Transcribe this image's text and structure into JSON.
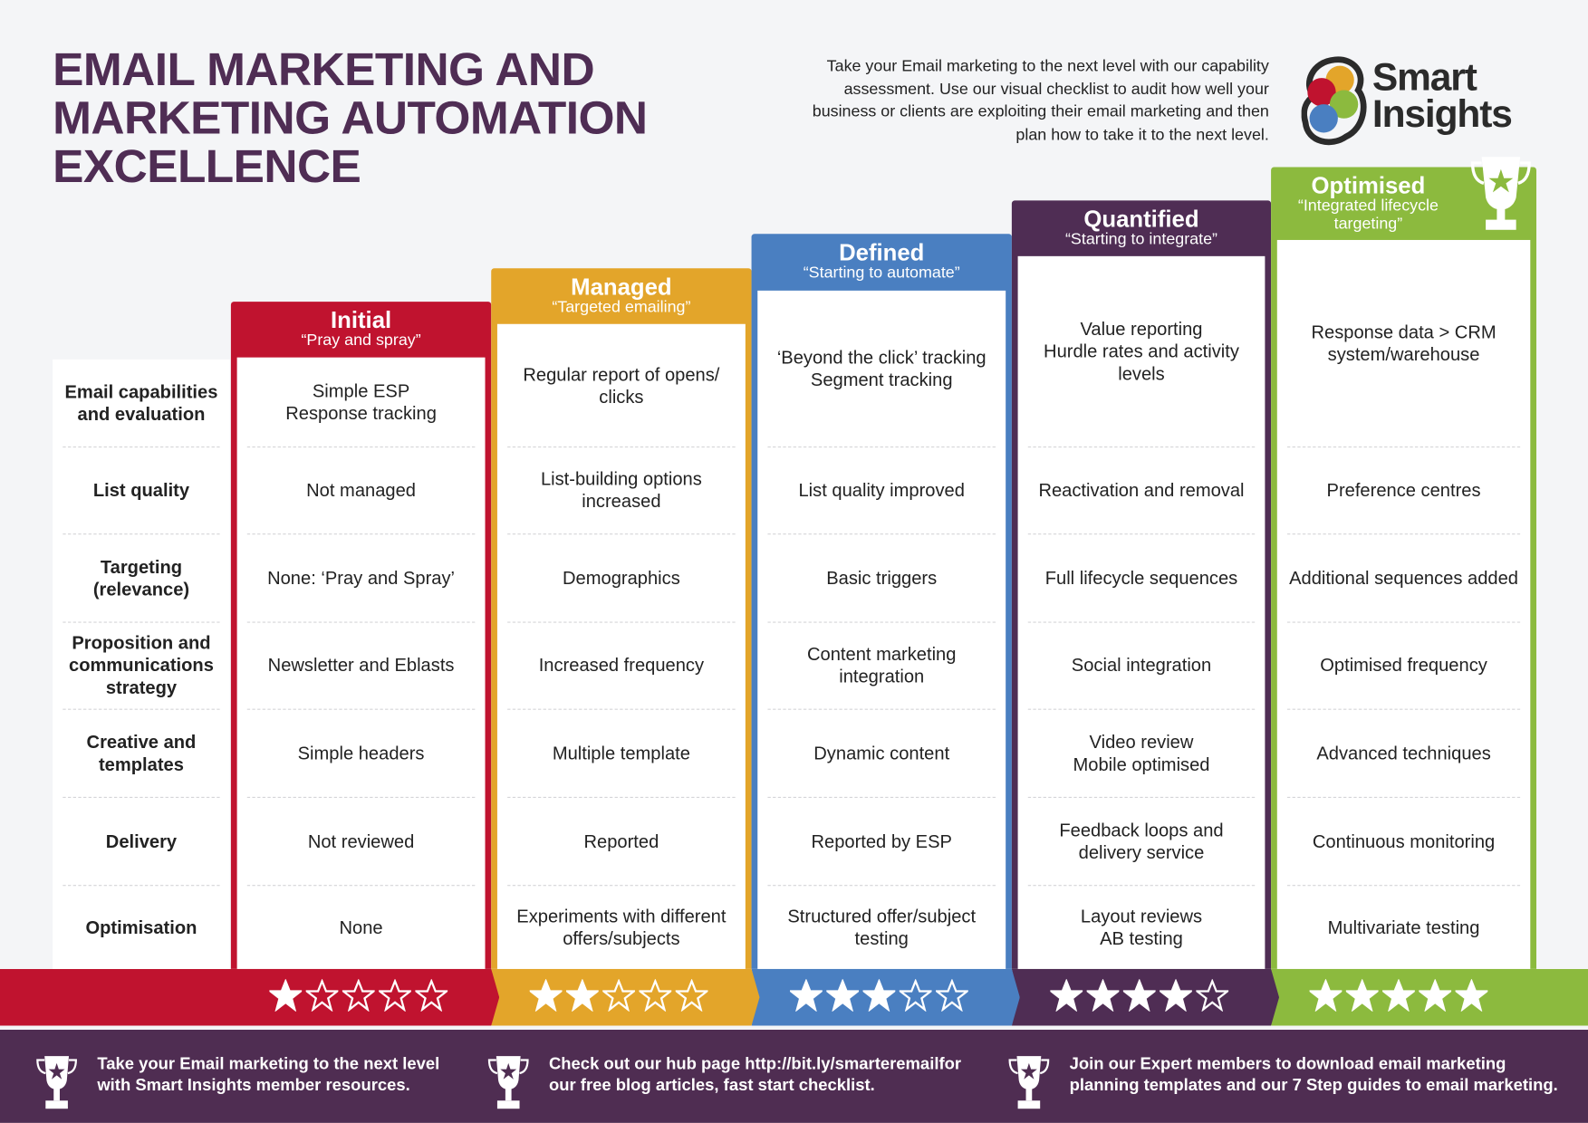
{
  "title": [
    "EMAIL MARKETING AND",
    "MARKETING AUTOMATION",
    "EXCELLENCE"
  ],
  "intro": "Take your Email marketing to the next level with our capability assessment. Use our visual checklist to audit how well your business or clients are exploiting their email marketing and then plan how to take it to the next level.",
  "logo": {
    "line1": "Smart",
    "line2": "Insights"
  },
  "row_labels": [
    "Email capabilities and evaluation",
    "List quality",
    "Targeting (relevance)",
    "Proposition and communications strategy",
    "Creative and templates",
    "Delivery",
    "Optimisation"
  ],
  "columns": [
    {
      "name": "Initial",
      "subtitle": "“Pray and spray”",
      "color": "#c0132f",
      "rating": 1,
      "cells": [
        "Simple ESP\nResponse tracking",
        "Not managed",
        "None: ‘Pray and Spray’",
        "Newsletter and Eblasts",
        "Simple headers",
        "Not reviewed",
        "None"
      ]
    },
    {
      "name": "Managed",
      "subtitle": "“Targeted emailing”",
      "color": "#e3a52a",
      "rating": 2,
      "cells": [
        "Regular report of opens/ clicks",
        "List-building options increased",
        "Demographics",
        "Increased frequency",
        "Multiple template",
        "Reported",
        "Experiments with different offers/subjects"
      ]
    },
    {
      "name": "Defined",
      "subtitle": "“Starting to automate”",
      "color": "#4a7fc1",
      "rating": 3,
      "cells": [
        "‘Beyond the click’ tracking\nSegment tracking",
        "List quality improved",
        "Basic triggers",
        "Content marketing integration",
        "Dynamic content",
        "Reported by ESP",
        "Structured offer/subject testing"
      ]
    },
    {
      "name": "Quantified",
      "subtitle": "“Starting to integrate”",
      "color": "#4f2d54",
      "rating": 4,
      "cells": [
        "Value reporting\nHurdle rates and activity levels",
        "Reactivation and removal",
        "Full lifecycle sequences",
        "Social integration",
        "Video review\nMobile optimised",
        "Feedback loops and delivery service",
        "Layout reviews\nAB testing"
      ]
    },
    {
      "name": "Optimised",
      "subtitle": "“Integrated lifecycle targeting”",
      "color": "#8cba3e",
      "rating": 5,
      "cells": [
        "Response data > CRM system/warehouse",
        "Preference centres",
        "Additional sequences added",
        "Optimised frequency",
        "Advanced techniques",
        "Continuous monitoring",
        "Multivariate testing"
      ]
    }
  ],
  "footer": [
    "Take your Email marketing to the next level with Smart Insights member resources.",
    "Check out our hub page http://bit.ly/smarteremailfor our free blog articles, fast start checklist.",
    "Join our Expert members to download email marketing planning templates and our 7 Step guides to email marketing."
  ]
}
